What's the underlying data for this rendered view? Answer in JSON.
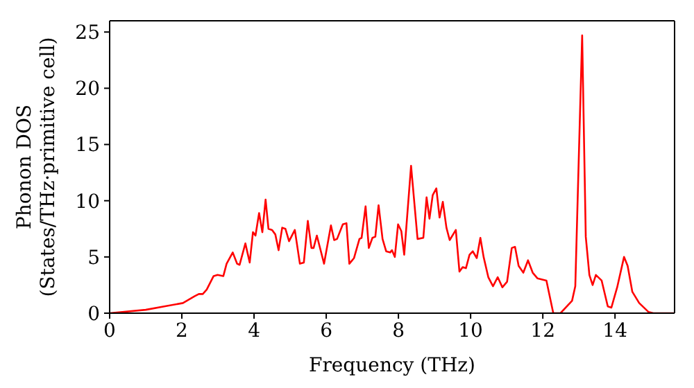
{
  "chart_data": {
    "type": "line",
    "xlabel": "Frequency (THz)",
    "ylabel": "Phonon DOS\n(States/THz·primitive cell)",
    "xlim": [
      0,
      15.65
    ],
    "xticks": [
      0,
      2,
      4,
      6,
      8,
      10,
      12,
      14
    ],
    "ylim": [
      0,
      26
    ],
    "yticks": [
      0,
      5,
      10,
      15,
      20,
      25
    ],
    "marker": "none",
    "line_style": "solid",
    "x": [
      0,
      1.0,
      1.51,
      2.03,
      2.35,
      2.47,
      2.58,
      2.69,
      2.88,
      2.99,
      3.15,
      3.24,
      3.41,
      3.53,
      3.6,
      3.76,
      3.88,
      3.97,
      4.04,
      4.14,
      4.23,
      4.32,
      4.4,
      4.5,
      4.59,
      4.68,
      4.78,
      4.87,
      4.97,
      5.13,
      5.27,
      5.38,
      5.49,
      5.59,
      5.65,
      5.74,
      5.94,
      6.13,
      6.22,
      6.3,
      6.46,
      6.56,
      6.64,
      6.77,
      6.92,
      6.98,
      7.09,
      7.18,
      7.28,
      7.36,
      7.45,
      7.56,
      7.66,
      7.77,
      7.82,
      7.9,
      7.99,
      8.08,
      8.16,
      8.35,
      8.53,
      8.69,
      8.78,
      8.86,
      8.95,
      9.05,
      9.14,
      9.23,
      9.33,
      9.42,
      9.59,
      9.69,
      9.78,
      9.87,
      9.97,
      10.06,
      10.17,
      10.27,
      10.36,
      10.49,
      10.62,
      10.75,
      10.88,
      11.01,
      11.14,
      11.23,
      11.33,
      11.46,
      11.59,
      11.72,
      11.85,
      12.1,
      12.29,
      12.49,
      12.81,
      12.9,
      13.0,
      13.09,
      13.19,
      13.29,
      13.38,
      13.47,
      13.63,
      13.8,
      13.9,
      14.06,
      14.25,
      14.35,
      14.48,
      14.67,
      14.93,
      15.06,
      15.63
    ],
    "series": [
      {
        "color": "#ff0000",
        "values": [
          0,
          0.3,
          0.6,
          0.9,
          1.5,
          1.7,
          1.7,
          2.1,
          3.3,
          3.4,
          3.3,
          4.4,
          5.4,
          4.4,
          4.3,
          6.2,
          4.5,
          7.2,
          6.9,
          8.9,
          7.2,
          10.1,
          7.5,
          7.4,
          7.0,
          5.6,
          7.6,
          7.5,
          6.4,
          7.4,
          4.4,
          4.5,
          8.2,
          5.8,
          5.8,
          6.9,
          4.4,
          7.8,
          6.5,
          6.6,
          7.9,
          8.0,
          4.4,
          4.9,
          6.6,
          6.7,
          9.5,
          5.8,
          6.7,
          6.8,
          9.6,
          6.6,
          5.5,
          5.4,
          5.6,
          5.0,
          7.9,
          7.3,
          5.2,
          13.1,
          6.6,
          6.7,
          10.3,
          8.4,
          10.5,
          11.1,
          8.5,
          9.9,
          7.6,
          6.5,
          7.4,
          3.7,
          4.1,
          4.0,
          5.2,
          5.5,
          4.9,
          6.7,
          5.0,
          3.2,
          2.4,
          3.2,
          2.3,
          2.8,
          5.8,
          5.9,
          4.2,
          3.6,
          4.7,
          3.6,
          3.1,
          2.9,
          0,
          0,
          1.1,
          2.4,
          14.2,
          24.7,
          6.8,
          3.4,
          2.5,
          3.4,
          2.9,
          0.6,
          0.5,
          2.3,
          5.0,
          4.2,
          1.9,
          0.9,
          0.1,
          0,
          0
        ]
      }
    ]
  }
}
